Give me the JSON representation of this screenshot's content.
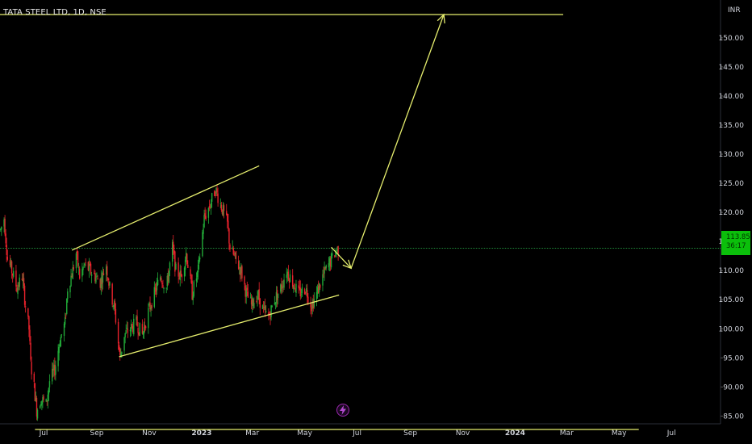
{
  "header": {
    "symbol_title": "TATA STEEL LTD, 1D, NSE",
    "currency": "INR"
  },
  "price_badge": {
    "price": "113.85",
    "countdown": "36:17"
  },
  "colors": {
    "background": "#000000",
    "up_candle": "#22ab38",
    "down_candle": "#e8222c",
    "drawing": "#e6ee6e",
    "price_line": "#1f8a3a",
    "badge": "#0bbf0b",
    "axis_text": "#d1d4dc",
    "flash_icon": "#9c27b0"
  },
  "icons": {
    "flash": "lightning-bolt-icon"
  },
  "chart_data": {
    "type": "candlestick",
    "symbol": "TATA STEEL LTD",
    "interval": "1D",
    "exchange": "NSE",
    "y_axis": {
      "unit": "INR",
      "ticks": [
        "85.00",
        "90.00",
        "95.00",
        "100.00",
        "105.00",
        "110.00",
        "115.00",
        "120.00",
        "125.00",
        "130.00",
        "135.00",
        "140.00",
        "145.00",
        "150.00"
      ],
      "range": [
        80.2,
        156.5
      ]
    },
    "x_axis": {
      "ticks": [
        "Jul",
        "Sep",
        "Nov",
        "2023",
        "Mar",
        "May",
        "Jul",
        "Sep",
        "Nov",
        "2024",
        "Mar",
        "May",
        "Jul"
      ],
      "bold": [
        "2023",
        "2024"
      ],
      "tick_dates": [
        "2022-07-01",
        "2022-09-01",
        "2022-11-01",
        "2023-01-01",
        "2023-03-01",
        "2023-05-01",
        "2023-07-01",
        "2023-09-01",
        "2023-11-01",
        "2024-01-01",
        "2024-03-01",
        "2024-05-01",
        "2024-07-01"
      ]
    },
    "last_price": 113.85,
    "price_path": [
      [
        "2022-05-12",
        117
      ],
      [
        "2022-05-16",
        119
      ],
      [
        "2022-05-20",
        112
      ],
      [
        "2022-05-25",
        110
      ],
      [
        "2022-05-31",
        107
      ],
      [
        "2022-06-06",
        109
      ],
      [
        "2022-06-10",
        104
      ],
      [
        "2022-06-14",
        100
      ],
      [
        "2022-06-16",
        94
      ],
      [
        "2022-06-20",
        90
      ],
      [
        "2022-06-23",
        86
      ],
      [
        "2022-06-28",
        88
      ],
      [
        "2022-07-04",
        87
      ],
      [
        "2022-07-08",
        91
      ],
      [
        "2022-07-14",
        93
      ],
      [
        "2022-07-20",
        98
      ],
      [
        "2022-07-26",
        101
      ],
      [
        "2022-07-29",
        107
      ],
      [
        "2022-08-04",
        110
      ],
      [
        "2022-08-08",
        113
      ],
      [
        "2022-08-12",
        109
      ],
      [
        "2022-08-18",
        111
      ],
      [
        "2022-08-24",
        110
      ],
      [
        "2022-08-30",
        109
      ],
      [
        "2022-09-05",
        108
      ],
      [
        "2022-09-12",
        111
      ],
      [
        "2022-09-16",
        107
      ],
      [
        "2022-09-22",
        103
      ],
      [
        "2022-09-28",
        95
      ],
      [
        "2022-10-03",
        99
      ],
      [
        "2022-10-10",
        100
      ],
      [
        "2022-10-17",
        101
      ],
      [
        "2022-10-24",
        99
      ],
      [
        "2022-10-31",
        103
      ],
      [
        "2022-11-07",
        106
      ],
      [
        "2022-11-14",
        109
      ],
      [
        "2022-11-21",
        107
      ],
      [
        "2022-11-28",
        114
      ],
      [
        "2022-12-02",
        110
      ],
      [
        "2022-12-08",
        109
      ],
      [
        "2022-12-14",
        113
      ],
      [
        "2022-12-21",
        106
      ],
      [
        "2022-12-28",
        110
      ],
      [
        "2023-01-04",
        119
      ],
      [
        "2023-01-10",
        121
      ],
      [
        "2023-01-17",
        124
      ],
      [
        "2023-01-24",
        121
      ],
      [
        "2023-01-31",
        118
      ],
      [
        "2023-02-03",
        114
      ],
      [
        "2023-02-09",
        112
      ],
      [
        "2023-02-16",
        110
      ],
      [
        "2023-02-22",
        106
      ],
      [
        "2023-02-28",
        104
      ],
      [
        "2023-03-07",
        106
      ],
      [
        "2023-03-14",
        103
      ],
      [
        "2023-03-20",
        102
      ],
      [
        "2023-03-27",
        105
      ],
      [
        "2023-04-03",
        107
      ],
      [
        "2023-04-10",
        110
      ],
      [
        "2023-04-17",
        108
      ],
      [
        "2023-04-24",
        106
      ],
      [
        "2023-05-02",
        107
      ],
      [
        "2023-05-09",
        104
      ],
      [
        "2023-05-15",
        106
      ],
      [
        "2023-05-22",
        109
      ],
      [
        "2023-05-29",
        111
      ],
      [
        "2023-06-05",
        113
      ],
      [
        "2023-06-09",
        113.85
      ]
    ],
    "drawings": [
      {
        "name": "channel-upper-line",
        "from": [
          "2022-08-03",
          113.5
        ],
        "to": [
          "2023-03-09",
          128
        ]
      },
      {
        "name": "channel-lower-line",
        "from": [
          "2022-09-27",
          95.2
        ],
        "to": [
          "2023-06-10",
          105.8
        ]
      },
      {
        "name": "target-level-line",
        "from": [
          "2022-05-01",
          154
        ],
        "to": [
          "2024-02-26",
          154
        ]
      },
      {
        "name": "support-level-line",
        "from": [
          "2022-06-21",
          82.7
        ],
        "to": [
          "2024-05-24",
          82.7
        ]
      },
      {
        "name": "projection-arrow-first-leg",
        "from": [
          "2023-06-01",
          114
        ],
        "to": [
          "2023-06-24",
          110.4
        ]
      },
      {
        "name": "projection-arrow-second-leg",
        "from": [
          "2023-06-24",
          110.4
        ],
        "to": [
          "2023-10-10",
          154
        ]
      }
    ]
  }
}
